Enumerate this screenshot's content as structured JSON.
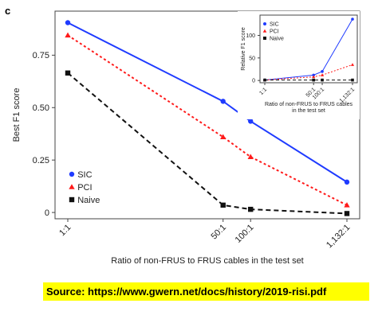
{
  "panel_label": "c",
  "source": "Source: https://www.gwern.net/docs/history/2019-risi.pdf",
  "chart_data": [
    {
      "type": "line",
      "x": [
        "1:1",
        "50:1",
        "100:1",
        "1,132:1"
      ],
      "x_scale": "log",
      "x_numeric": [
        1,
        50,
        100,
        1132
      ],
      "xlabel": "Ratio of non-FRUS to FRUS cables in the test set",
      "ylabel": "Best F1 score",
      "ylim": [
        -0.03,
        0.96
      ],
      "yticks": [
        "0",
        "0.25",
        "0.50",
        "0.75"
      ],
      "ytick_values": [
        0,
        0.25,
        0.5,
        0.75
      ],
      "legend_position": "bottom-left",
      "series": [
        {
          "name": "SIC",
          "color": "#1f3bff",
          "line": "solid",
          "marker": "circle",
          "values": [
            0.905,
            0.53,
            0.435,
            0.145
          ]
        },
        {
          "name": "PCI",
          "color": "#ff1a1a",
          "line": "dotted",
          "marker": "triangle",
          "values": [
            0.845,
            0.36,
            0.265,
            0.035
          ]
        },
        {
          "name": "Naive",
          "color": "#111111",
          "line": "dashed",
          "marker": "square",
          "values": [
            0.665,
            0.035,
            0.015,
            -0.005
          ]
        }
      ]
    },
    {
      "type": "line",
      "x": [
        "1:1",
        "50:1",
        "100:1",
        "1,132:1"
      ],
      "x_scale": "log",
      "x_numeric": [
        1,
        50,
        100,
        1132
      ],
      "xlabel": "Ratio of non-FRUS to FRUS cables\nin the test set",
      "ylabel": "Relative F1 score",
      "ylim": [
        -5,
        145
      ],
      "yticks": [
        "0",
        "50",
        "100"
      ],
      "ytick_values": [
        0,
        50,
        100
      ],
      "legend_position": "top-left",
      "series": [
        {
          "name": "SIC",
          "color": "#1f3bff",
          "line": "solid",
          "marker": "circle",
          "values": [
            1,
            12,
            20,
            136
          ]
        },
        {
          "name": "PCI",
          "color": "#ff1a1a",
          "line": "dotted",
          "marker": "triangle",
          "values": [
            1,
            8,
            12,
            35
          ]
        },
        {
          "name": "Naive",
          "color": "#111111",
          "line": "dashed",
          "marker": "square",
          "values": [
            1,
            1,
            1,
            1
          ]
        }
      ]
    }
  ]
}
